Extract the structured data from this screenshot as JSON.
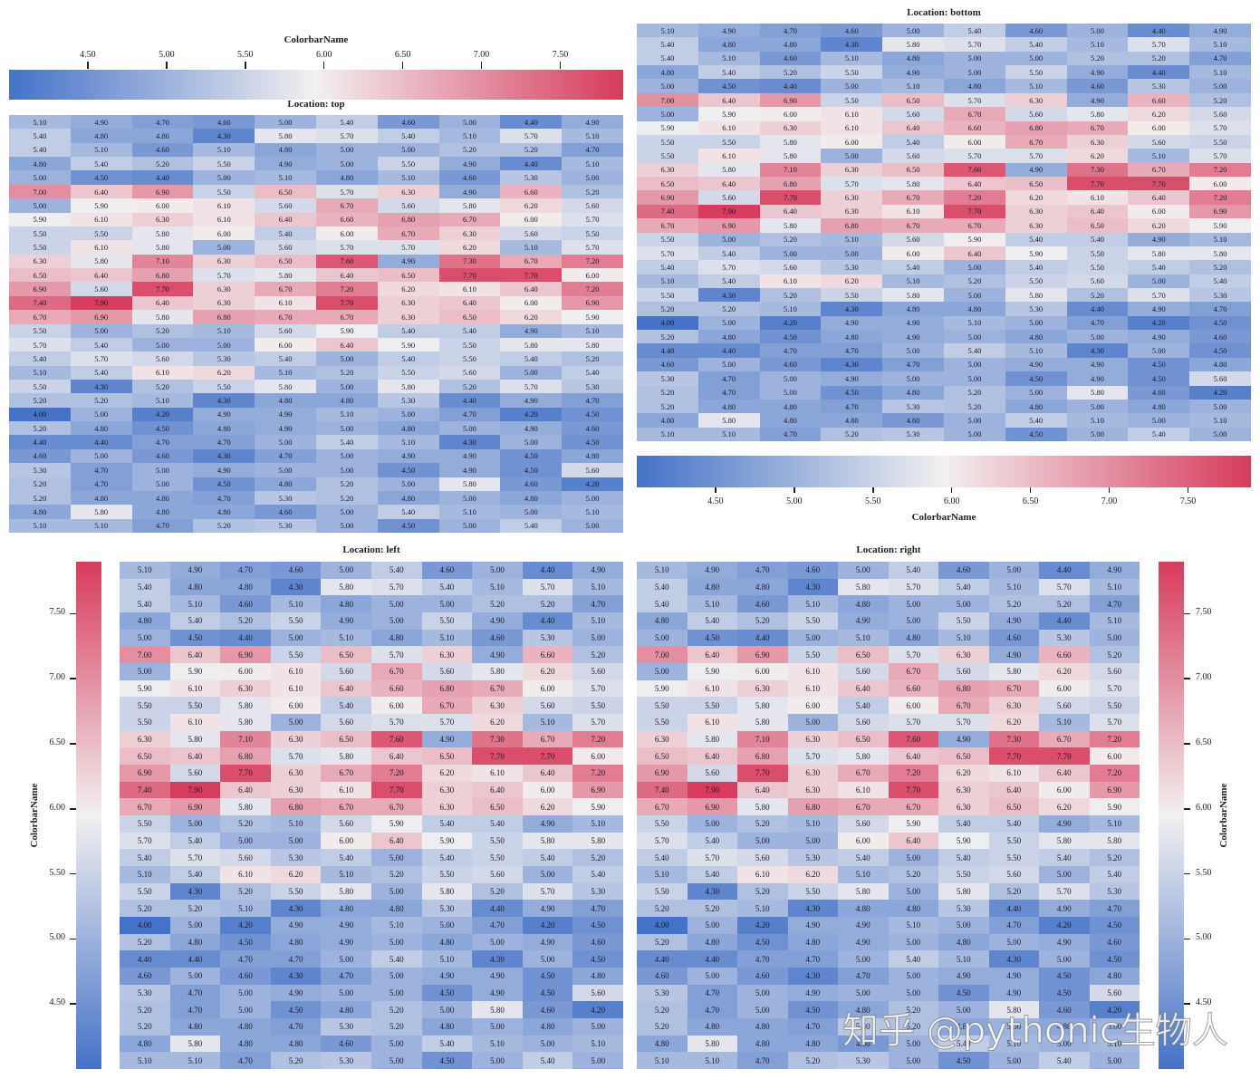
{
  "chart_data": {
    "type": "heatmap",
    "rows": 30,
    "cols": 10,
    "vmin": 4.0,
    "vmax": 7.9,
    "center": 5.95,
    "colormap": {
      "low": "#4472c8",
      "mid": "#f2f0f0",
      "high": "#d73b5d"
    },
    "annotation_format": "0.00",
    "colorbar_label": "ColorbarName",
    "colorbar_ticks": [
      4.5,
      5.0,
      5.5,
      6.0,
      6.5,
      7.0,
      7.5
    ],
    "colorbar_tick_labels": [
      "4.50",
      "5.00",
      "5.50",
      "6.00",
      "6.50",
      "7.00",
      "7.50"
    ],
    "panels": [
      {
        "title": "Location: top",
        "colorbar_location": "top"
      },
      {
        "title": "Location: bottom",
        "colorbar_location": "bottom"
      },
      {
        "title": "Location: left",
        "colorbar_location": "left"
      },
      {
        "title": "Location: right",
        "colorbar_location": "right"
      }
    ],
    "values": [
      [
        5.1,
        4.9,
        4.7,
        4.6,
        5.0,
        5.4,
        4.6,
        5.0,
        4.4,
        4.9
      ],
      [
        5.4,
        4.8,
        4.8,
        4.3,
        5.8,
        5.7,
        5.4,
        5.1,
        5.7,
        5.1
      ],
      [
        5.4,
        5.1,
        4.6,
        5.1,
        4.8,
        5.0,
        5.0,
        5.2,
        5.2,
        4.7
      ],
      [
        4.8,
        5.4,
        5.2,
        5.5,
        4.9,
        5.0,
        5.5,
        4.9,
        4.4,
        5.1
      ],
      [
        5.0,
        4.5,
        4.4,
        5.0,
        5.1,
        4.8,
        5.1,
        4.6,
        5.3,
        5.0
      ],
      [
        7.0,
        6.4,
        6.9,
        5.5,
        6.5,
        5.7,
        6.3,
        4.9,
        6.6,
        5.2
      ],
      [
        5.0,
        5.9,
        6.0,
        6.1,
        5.6,
        6.7,
        5.6,
        5.8,
        6.2,
        5.6
      ],
      [
        5.9,
        6.1,
        6.3,
        6.1,
        6.4,
        6.6,
        6.8,
        6.7,
        6.0,
        5.7
      ],
      [
        5.5,
        5.5,
        5.8,
        6.0,
        5.4,
        6.0,
        6.7,
        6.3,
        5.6,
        5.5
      ],
      [
        5.5,
        6.1,
        5.8,
        5.0,
        5.6,
        5.7,
        5.7,
        6.2,
        5.1,
        5.7
      ],
      [
        6.3,
        5.8,
        7.1,
        6.3,
        6.5,
        7.6,
        4.9,
        7.3,
        6.7,
        7.2
      ],
      [
        6.5,
        6.4,
        6.8,
        5.7,
        5.8,
        6.4,
        6.5,
        7.7,
        7.7,
        6.0
      ],
      [
        6.9,
        5.6,
        7.7,
        6.3,
        6.7,
        7.2,
        6.2,
        6.1,
        6.4,
        7.2
      ],
      [
        7.4,
        7.9,
        6.4,
        6.3,
        6.1,
        7.7,
        6.3,
        6.4,
        6.0,
        6.9
      ],
      [
        6.7,
        6.9,
        5.8,
        6.8,
        6.7,
        6.7,
        6.3,
        6.5,
        6.2,
        5.9
      ],
      [
        5.5,
        5.0,
        5.2,
        5.1,
        5.6,
        5.9,
        5.4,
        5.4,
        4.9,
        5.1
      ],
      [
        5.7,
        5.4,
        5.0,
        5.0,
        6.0,
        6.4,
        5.9,
        5.5,
        5.8,
        5.8
      ],
      [
        5.4,
        5.7,
        5.6,
        5.3,
        5.4,
        5.0,
        5.4,
        5.5,
        5.4,
        5.2
      ],
      [
        5.1,
        5.4,
        6.1,
        6.2,
        5.1,
        5.2,
        5.5,
        5.6,
        5.0,
        5.4
      ],
      [
        5.5,
        4.3,
        5.2,
        5.5,
        5.8,
        5.0,
        5.8,
        5.2,
        5.7,
        5.3
      ],
      [
        5.2,
        5.2,
        5.1,
        4.3,
        4.8,
        4.8,
        5.3,
        4.4,
        4.9,
        4.7
      ],
      [
        4.0,
        5.0,
        4.2,
        4.9,
        4.9,
        5.1,
        5.0,
        4.7,
        4.2,
        4.5
      ],
      [
        5.2,
        4.8,
        4.5,
        4.8,
        4.9,
        5.0,
        4.8,
        5.0,
        4.9,
        4.6
      ],
      [
        4.4,
        4.4,
        4.7,
        4.7,
        5.0,
        5.4,
        5.1,
        4.3,
        5.0,
        4.5
      ],
      [
        4.6,
        5.0,
        4.6,
        4.3,
        4.7,
        5.0,
        4.9,
        4.9,
        4.5,
        4.8
      ],
      [
        5.3,
        4.7,
        5.0,
        4.9,
        5.0,
        5.0,
        4.5,
        4.9,
        4.5,
        5.6
      ],
      [
        5.2,
        4.7,
        5.0,
        4.5,
        4.8,
        5.2,
        5.0,
        5.8,
        4.6,
        4.2
      ],
      [
        5.2,
        4.8,
        4.8,
        4.7,
        5.3,
        5.2,
        4.8,
        5.0,
        4.8,
        5.0
      ],
      [
        4.8,
        5.8,
        4.8,
        4.8,
        4.6,
        5.0,
        5.4,
        5.1,
        5.0,
        5.1
      ],
      [
        5.1,
        5.1,
        4.7,
        5.2,
        5.3,
        5.0,
        4.5,
        5.0,
        5.4,
        5.0
      ]
    ]
  },
  "watermark": "知乎 @pythonic生物人"
}
